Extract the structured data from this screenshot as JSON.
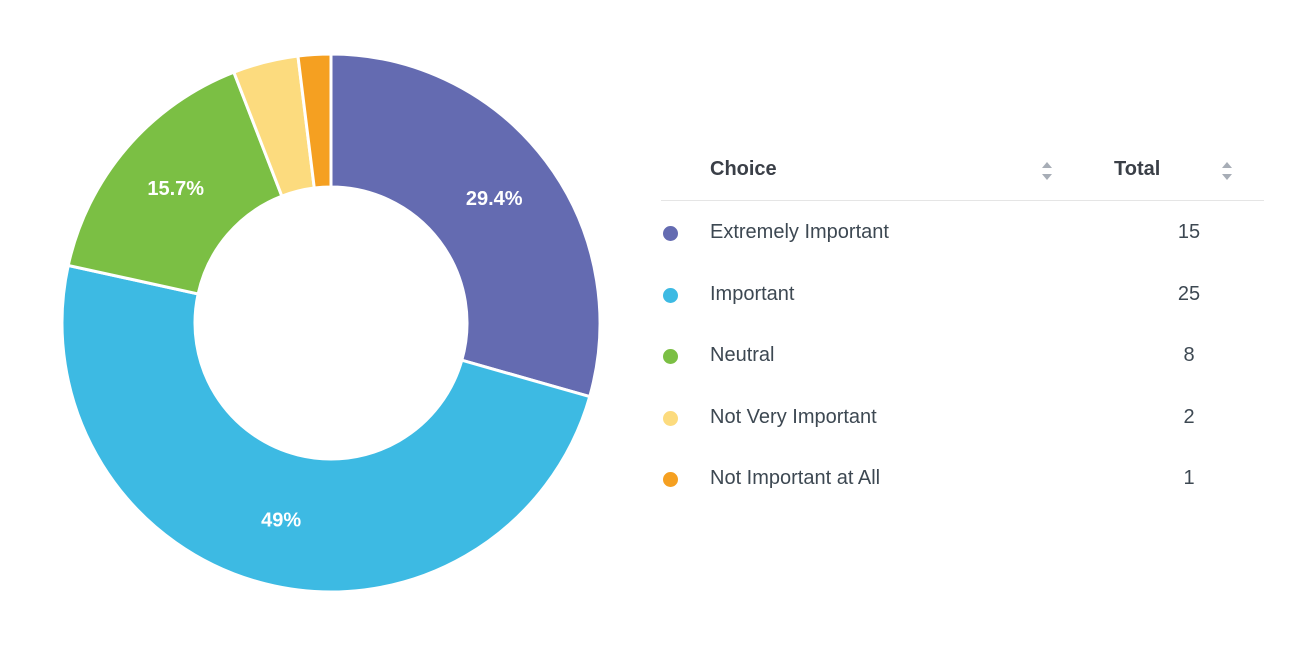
{
  "chart_data": {
    "type": "pie",
    "categories": [
      "Extremely Important",
      "Important",
      "Neutral",
      "Not Very Important",
      "Not Important at All"
    ],
    "values": [
      15,
      25,
      8,
      2,
      1
    ],
    "labels": [
      "29.4%",
      "49%",
      "15.7%",
      "",
      ""
    ],
    "colors": [
      "#646bb1",
      "#3dbae3",
      "#7bbf44",
      "#fcdb7e",
      "#f5a021"
    ],
    "donut": true,
    "legend_position": "right"
  },
  "table": {
    "choice_header": "Choice",
    "total_header": "Total",
    "rows": [
      {
        "choice": "Extremely Important",
        "total": "15",
        "color": "#646bb1"
      },
      {
        "choice": "Important",
        "total": "25",
        "color": "#3dbae3"
      },
      {
        "choice": "Neutral",
        "total": "8",
        "color": "#7bbf44"
      },
      {
        "choice": "Not Very Important",
        "total": "2",
        "color": "#fcdb7e"
      },
      {
        "choice": "Not Important at All",
        "total": "1",
        "color": "#f5a021"
      }
    ]
  }
}
